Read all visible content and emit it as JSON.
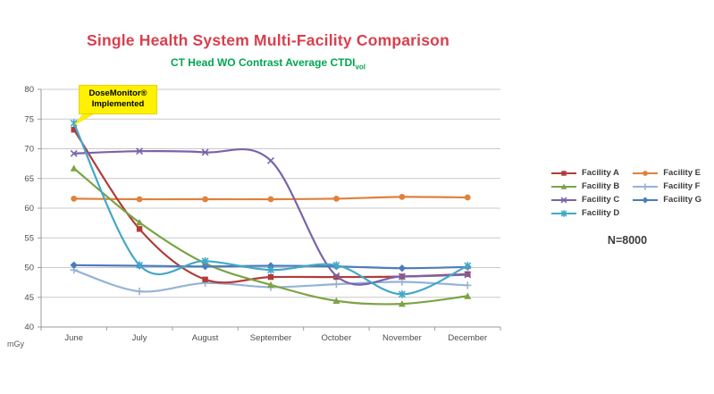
{
  "header": {
    "title": "Single Health System Multi-Facility Comparison",
    "title_color": "#d8404e",
    "subtitle": "CT Head WO Contrast Average CTDI",
    "subtitle_sub": "vol",
    "subtitle_color": "#00a651"
  },
  "annotation": {
    "line1": "DoseMonitor®",
    "line2": "Implemented",
    "bg_color": "#fff100"
  },
  "note": "N=8000",
  "unit_label": "mGy",
  "chart_data": {
    "type": "line",
    "title": "Single Health System Multi-Facility Comparison",
    "subtitle": "CT Head WO Contrast Average CTDI vol",
    "categories": [
      "June",
      "July",
      "August",
      "September",
      "October",
      "November",
      "December"
    ],
    "ylim": [
      40,
      80
    ],
    "ytick_step": 5,
    "grid": true,
    "smooth": true,
    "legend_position": "right",
    "ylabel": "mGy",
    "annotation": "DoseMonitor® Implemented (points at June)",
    "sample_size": "N=8000",
    "series": [
      {
        "name": "Facility A",
        "color": "#b13c39",
        "marker": "square",
        "values": [
          73.2,
          56.5,
          48.0,
          48.4,
          48.4,
          48.5,
          48.9
        ]
      },
      {
        "name": "Facility B",
        "color": "#7ca344",
        "marker": "triangle",
        "values": [
          66.7,
          57.6,
          50.7,
          47.1,
          44.4,
          43.9,
          45.2
        ]
      },
      {
        "name": "Facility C",
        "color": "#7a63a8",
        "marker": "x",
        "values": [
          69.2,
          69.6,
          69.4,
          68.0,
          48.6,
          48.5,
          48.8
        ]
      },
      {
        "name": "Facility D",
        "color": "#43a8c9",
        "marker": "star",
        "values": [
          74.3,
          50.4,
          51.1,
          49.6,
          50.4,
          45.5,
          50.3
        ]
      },
      {
        "name": "Facility E",
        "color": "#e0813c",
        "marker": "circle",
        "values": [
          61.6,
          61.5,
          61.5,
          61.5,
          61.6,
          61.9,
          61.8
        ]
      },
      {
        "name": "Facility F",
        "color": "#95b3d7",
        "marker": "plus",
        "values": [
          49.6,
          46.0,
          47.4,
          46.7,
          47.2,
          47.6,
          47.0
        ]
      },
      {
        "name": "Facility G",
        "color": "#4c7cba",
        "marker": "diamond",
        "values": [
          50.4,
          50.3,
          50.2,
          50.3,
          50.2,
          49.9,
          50.1
        ]
      }
    ],
    "style": {
      "grid_color": "#c9c9c9",
      "axis_color": "#9b9b9b",
      "tick_label_color": "#4d4d4d"
    },
    "draw_order": [
      4,
      5,
      0,
      1,
      2,
      6,
      3
    ],
    "legend_columns": [
      [
        0,
        1,
        2,
        3
      ],
      [
        4,
        5,
        6
      ]
    ]
  }
}
